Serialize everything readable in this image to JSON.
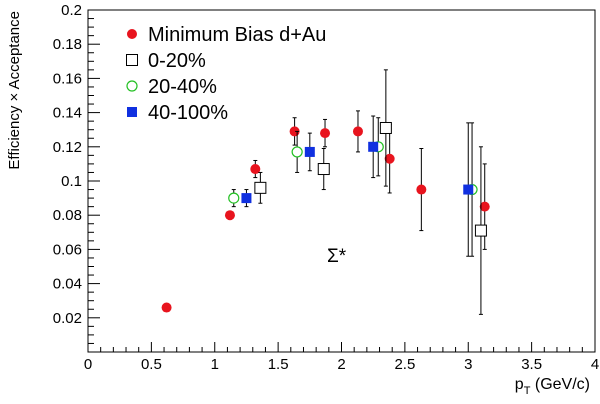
{
  "chart_data": {
    "type": "scatter",
    "xlabel_main": "p",
    "xlabel_sub": "T",
    "xlabel_rest": " (GeV/c)",
    "ylabel": "Efficiency × Acceptance",
    "annotation": "Σ*",
    "xlim": [
      0,
      4
    ],
    "ylim": [
      0,
      0.2
    ],
    "x_ticks": [
      0,
      0.5,
      1,
      1.5,
      2,
      2.5,
      3,
      3.5,
      4
    ],
    "x_tick_labels": [
      "0",
      "0.5",
      "1",
      "1.5",
      "2",
      "2.5",
      "3",
      "3.5",
      "4"
    ],
    "y_ticks": [
      0.02,
      0.04,
      0.06,
      0.08,
      0.1,
      0.12,
      0.14,
      0.16,
      0.18,
      0.2
    ],
    "y_tick_labels": [
      "0.02",
      "0.04",
      "0.06",
      "0.08",
      "0.1",
      "0.12",
      "0.14",
      "0.16",
      "0.18",
      "0.2"
    ],
    "legend_position": "top-left",
    "series": [
      {
        "name": "Minimum Bias d+Au",
        "marker": "filled-circle",
        "color": "#e8141e",
        "points": [
          {
            "x": 0.62,
            "y": 0.026,
            "err": 0.0
          },
          {
            "x": 1.12,
            "y": 0.08,
            "err": 0.0
          },
          {
            "x": 1.32,
            "y": 0.107,
            "err": 0.005
          },
          {
            "x": 1.63,
            "y": 0.129,
            "err": 0.008
          },
          {
            "x": 1.87,
            "y": 0.128,
            "err": 0.008
          },
          {
            "x": 2.13,
            "y": 0.129,
            "err": 0.012
          },
          {
            "x": 2.38,
            "y": 0.113,
            "err": 0.02
          },
          {
            "x": 2.63,
            "y": 0.095,
            "err": 0.024
          },
          {
            "x": 3.13,
            "y": 0.085,
            "err": 0.025
          }
        ]
      },
      {
        "name": "0-20%",
        "marker": "open-square",
        "color": "#000000",
        "points": [
          {
            "x": 1.36,
            "y": 0.096,
            "err": 0.009
          },
          {
            "x": 1.86,
            "y": 0.107,
            "err": 0.012
          },
          {
            "x": 2.35,
            "y": 0.131,
            "err": 0.034
          },
          {
            "x": 3.1,
            "y": 0.071,
            "err": 0.049
          }
        ]
      },
      {
        "name": "20-40%",
        "marker": "open-circle",
        "color": "#22c022",
        "points": [
          {
            "x": 1.15,
            "y": 0.09,
            "err": 0.005
          },
          {
            "x": 1.65,
            "y": 0.117,
            "err": 0.012
          },
          {
            "x": 2.29,
            "y": 0.12,
            "err": 0.017
          },
          {
            "x": 3.03,
            "y": 0.095,
            "err": 0.039
          }
        ]
      },
      {
        "name": "40-100%",
        "marker": "filled-square",
        "color": "#1030e0",
        "points": [
          {
            "x": 1.25,
            "y": 0.09,
            "err": 0.005
          },
          {
            "x": 1.75,
            "y": 0.117,
            "err": 0.011
          },
          {
            "x": 2.25,
            "y": 0.12,
            "err": 0.018
          },
          {
            "x": 3.0,
            "y": 0.095,
            "err": 0.039
          }
        ]
      }
    ]
  }
}
